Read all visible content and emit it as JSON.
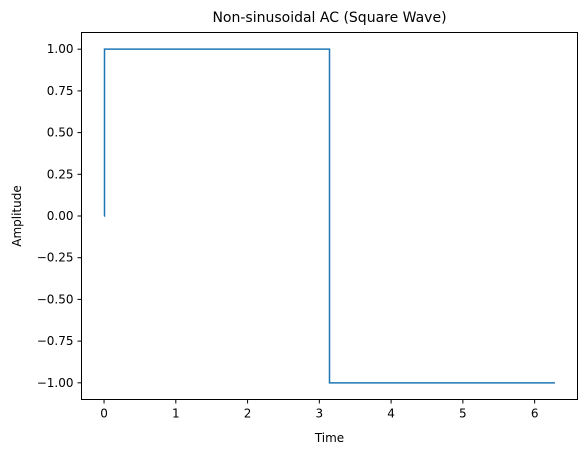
{
  "chart_data": {
    "type": "line",
    "title": "Non-sinusoidal AC (Square Wave)",
    "xlabel": "Time",
    "ylabel": "Amplitude",
    "xlim": [
      -0.3142,
      6.5973
    ],
    "ylim": [
      -1.1,
      1.1
    ],
    "xticks": [
      0,
      1,
      2,
      3,
      4,
      5,
      6
    ],
    "yticks": [
      -1.0,
      -0.75,
      -0.5,
      -0.25,
      0.0,
      0.25,
      0.5,
      0.75,
      1.0
    ],
    "xtick_labels": [
      "0",
      "1",
      "2",
      "3",
      "4",
      "5",
      "6"
    ],
    "ytick_labels": [
      "−1.00",
      "−0.75",
      "−0.50",
      "−0.25",
      "0.00",
      "0.25",
      "0.50",
      "0.75",
      "1.00"
    ],
    "grid": false,
    "series": [
      {
        "color": "#1f77b4",
        "x": [
          0,
          0.0063,
          0.0063,
          3.1416,
          3.1416,
          6.2832
        ],
        "y": [
          0,
          0,
          1,
          1,
          -1,
          -1
        ]
      }
    ]
  }
}
